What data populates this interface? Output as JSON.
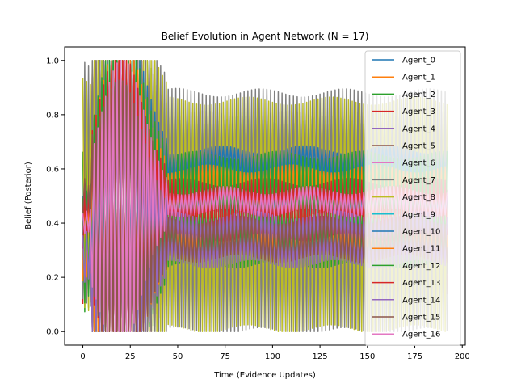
{
  "chart_data": {
    "type": "line",
    "title": "Belief Evolution in Agent Network (N = 17)",
    "xlabel": "Time (Evidence Updates)",
    "ylabel": "Belief (Posterior)",
    "xlim": [
      -9.6,
      201.6
    ],
    "ylim": [
      -0.05,
      1.05
    ],
    "xticks": [
      0,
      25,
      50,
      75,
      100,
      125,
      150,
      175,
      200
    ],
    "yticks": [
      0.0,
      0.2,
      0.4,
      0.6,
      0.8,
      1.0
    ],
    "xtick_labels": [
      "0",
      "25",
      "50",
      "75",
      "100",
      "125",
      "150",
      "175",
      "200"
    ],
    "ytick_labels": [
      "0.0",
      "0.2",
      "0.4",
      "0.6",
      "0.8",
      "1.0"
    ],
    "grid": false,
    "legend_position": "top-right",
    "x_max": 192,
    "series": [
      {
        "name": "Agent_0",
        "color": "#1f77b4",
        "start": 0.45,
        "center": 0.62,
        "amplitude": 0.05
      },
      {
        "name": "Agent_1",
        "color": "#ff7f0e",
        "start": 0.5,
        "center": 0.5,
        "amplitude": 0.25
      },
      {
        "name": "Agent_2",
        "color": "#2ca02c",
        "start": 0.35,
        "center": 0.48,
        "amplitude": 0.3
      },
      {
        "name": "Agent_3",
        "color": "#d62728",
        "start": 0.4,
        "center": 0.45,
        "amplitude": 0.3
      },
      {
        "name": "Agent_4",
        "color": "#9467bd",
        "start": 0.3,
        "center": 0.36,
        "amplitude": 0.14
      },
      {
        "name": "Agent_5",
        "color": "#8c564b",
        "start": 0.45,
        "center": 0.5,
        "amplitude": 0.3
      },
      {
        "name": "Agent_6",
        "color": "#e377c2",
        "start": 0.4,
        "center": 0.48,
        "amplitude": 0.03
      },
      {
        "name": "Agent_7",
        "color": "#7f7f7f",
        "start": 0.55,
        "center": 0.44,
        "amplitude": 0.44
      },
      {
        "name": "Agent_8",
        "color": "#bcbd22",
        "start": 0.5,
        "center": 0.43,
        "amplitude": 0.42
      },
      {
        "name": "Agent_9",
        "color": "#17becf",
        "start": 0.4,
        "center": 0.45,
        "amplitude": 0.05
      },
      {
        "name": "Agent_10",
        "color": "#1f77b4",
        "start": 0.45,
        "center": 0.62,
        "amplitude": 0.05
      },
      {
        "name": "Agent_11",
        "color": "#ff7f0e",
        "start": 0.35,
        "center": 0.45,
        "amplitude": 0.15
      },
      {
        "name": "Agent_12",
        "color": "#2ca02c",
        "start": 0.3,
        "center": 0.45,
        "amplitude": 0.2
      },
      {
        "name": "Agent_13",
        "color": "#d62728",
        "start": 0.4,
        "center": 0.45,
        "amplitude": 0.1
      },
      {
        "name": "Agent_14",
        "color": "#9467bd",
        "start": 0.25,
        "center": 0.34,
        "amplitude": 0.09
      },
      {
        "name": "Agent_15",
        "color": "#8c564b",
        "start": 0.5,
        "center": 0.34,
        "amplitude": 0.07
      },
      {
        "name": "Agent_16",
        "color": "#e377c2",
        "start": 0.4,
        "center": 0.48,
        "amplitude": 0.04
      }
    ]
  }
}
